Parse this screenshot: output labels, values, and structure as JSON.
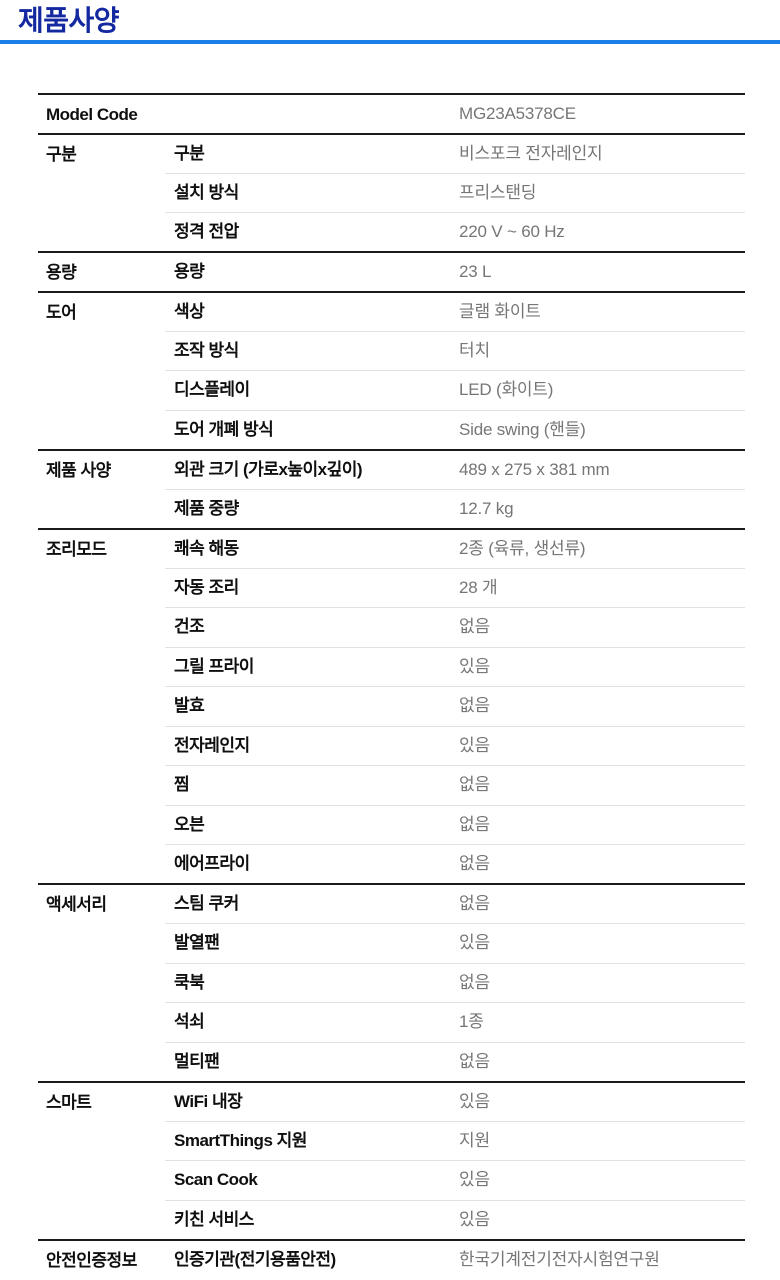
{
  "page": {
    "title": "제품사양"
  },
  "colors": {
    "title_blue": "#1428a0",
    "rule_blue": "#1a7fe8",
    "label_black": "#0f0f0f",
    "value_gray": "#767676",
    "border_dark": "#1a1a1a",
    "border_light": "#e2e2e2",
    "bg": "#ffffff"
  },
  "table": {
    "sections": [
      {
        "category": "Model Code",
        "rows": [
          {
            "label": "",
            "value": "MG23A5378CE"
          }
        ]
      },
      {
        "category": "구분",
        "rows": [
          {
            "label": "구분",
            "value": "비스포크 전자레인지"
          },
          {
            "label": "설치 방식",
            "value": "프리스탠딩"
          },
          {
            "label": "정격 전압",
            "value": "220 V ~ 60 Hz"
          }
        ]
      },
      {
        "category": "용량",
        "rows": [
          {
            "label": "용량",
            "value": "23 L"
          }
        ]
      },
      {
        "category": "도어",
        "rows": [
          {
            "label": "색상",
            "value": "글램 화이트"
          },
          {
            "label": "조작 방식",
            "value": "터치"
          },
          {
            "label": "디스플레이",
            "value": "LED (화이트)"
          },
          {
            "label": "도어 개폐 방식",
            "value": "Side swing (핸들)"
          }
        ]
      },
      {
        "category": "제품 사양",
        "rows": [
          {
            "label": "외관 크기 (가로x높이x깊이)",
            "value": "489 x 275 x 381 mm"
          },
          {
            "label": "제품 중량",
            "value": "12.7 kg"
          }
        ]
      },
      {
        "category": "조리모드",
        "rows": [
          {
            "label": "쾌속 해동",
            "value": "2종 (육류, 생선류)"
          },
          {
            "label": "자동 조리",
            "value": "28 개"
          },
          {
            "label": "건조",
            "value": "없음"
          },
          {
            "label": "그릴 프라이",
            "value": "있음"
          },
          {
            "label": "발효",
            "value": "없음"
          },
          {
            "label": "전자레인지",
            "value": "있음"
          },
          {
            "label": "찜",
            "value": "없음"
          },
          {
            "label": "오븐",
            "value": "없음"
          },
          {
            "label": "에어프라이",
            "value": "없음"
          }
        ]
      },
      {
        "category": "액세서리",
        "rows": [
          {
            "label": "스팀 쿠커",
            "value": "없음"
          },
          {
            "label": "발열팬",
            "value": "있음"
          },
          {
            "label": "쿡북",
            "value": "없음"
          },
          {
            "label": "석쇠",
            "value": "1종"
          },
          {
            "label": "멀티팬",
            "value": "없음"
          }
        ]
      },
      {
        "category": "스마트",
        "rows": [
          {
            "label": "WiFi 내장",
            "value": "있음"
          },
          {
            "label": "SmartThings 지원",
            "value": "지원"
          },
          {
            "label": "Scan Cook",
            "value": "있음"
          },
          {
            "label": "키친 서비스",
            "value": "있음"
          }
        ]
      },
      {
        "category": "안전인증정보",
        "rows": [
          {
            "label": "인증기관(전기용품안전)",
            "value": "한국기계전기전자시험연구원"
          }
        ]
      }
    ]
  }
}
